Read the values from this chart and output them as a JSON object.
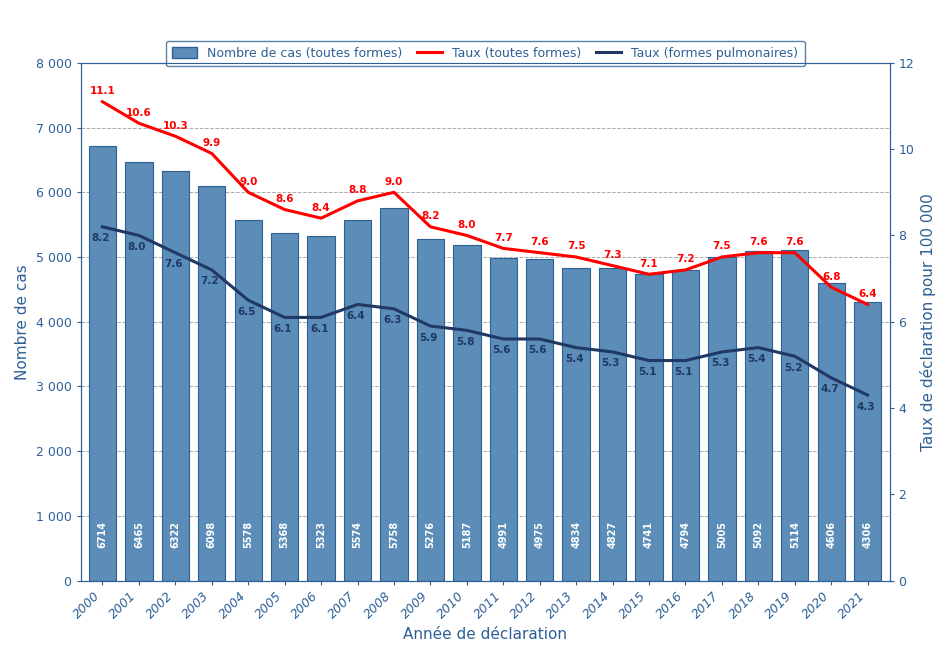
{
  "years": [
    2000,
    2001,
    2002,
    2003,
    2004,
    2005,
    2006,
    2007,
    2008,
    2009,
    2010,
    2011,
    2012,
    2013,
    2014,
    2015,
    2016,
    2017,
    2018,
    2019,
    2020,
    2021
  ],
  "cas": [
    6714,
    6465,
    6322,
    6098,
    5578,
    5368,
    5323,
    5574,
    5758,
    5276,
    5187,
    4991,
    4975,
    4834,
    4827,
    4741,
    4794,
    5005,
    5092,
    5114,
    4606,
    4306
  ],
  "taux_toutes": [
    11.1,
    10.6,
    10.3,
    9.9,
    9.0,
    8.6,
    8.4,
    8.8,
    9.0,
    8.2,
    8.0,
    7.7,
    7.6,
    7.5,
    7.3,
    7.1,
    7.2,
    7.5,
    7.6,
    7.6,
    6.8,
    6.4
  ],
  "taux_pulm": [
    8.2,
    8.0,
    7.6,
    7.2,
    6.5,
    6.1,
    6.1,
    6.4,
    6.3,
    5.9,
    5.8,
    5.6,
    5.6,
    5.4,
    5.3,
    5.1,
    5.1,
    5.3,
    5.4,
    5.2,
    4.7,
    4.3
  ],
  "bar_color": "#5b8db8",
  "bar_edgecolor": "#2e6096",
  "taux_toutes_color": "#ff0000",
  "taux_pulm_color": "#1f3864",
  "ylabel_left": "Nombre de cas",
  "ylabel_right": "Taux de déclaration pour 100 000",
  "xlabel": "Année de déclaration",
  "ylim_left": [
    0,
    8000
  ],
  "ylim_right": [
    0,
    12
  ],
  "yticks_left": [
    0,
    1000,
    2000,
    3000,
    4000,
    5000,
    6000,
    7000,
    8000
  ],
  "yticks_right": [
    0,
    2,
    4,
    6,
    8,
    10,
    12
  ],
  "legend_labels": [
    "Nombre de cas (toutes formes)",
    "Taux (toutes formes)",
    "Taux (formes pulmonaires)"
  ],
  "background_color": "#ffffff",
  "grid_color": "#aaaaaa",
  "axis_color": "#2e6096",
  "label_color": "#2e6096"
}
